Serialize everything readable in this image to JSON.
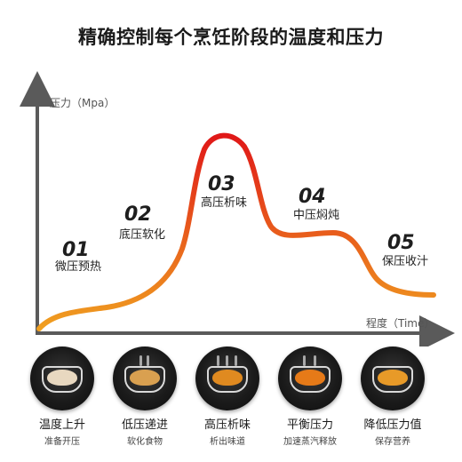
{
  "title": "精确控制每个烹饪阶段的温度和压力",
  "chart_data": {
    "type": "line",
    "ylabel": "压力（Mpa）",
    "xlabel": "程度（Time）",
    "curve_colors": [
      "#f0a020",
      "#e01818"
    ],
    "axis_color": "#5a5a5a",
    "stages": [
      {
        "num": "01",
        "label": "微压预热"
      },
      {
        "num": "02",
        "label": "底压软化"
      },
      {
        "num": "03",
        "label": "高压析味"
      },
      {
        "num": "04",
        "label": "中压焖炖"
      },
      {
        "num": "05",
        "label": "保压收汁"
      }
    ]
  },
  "steps": [
    {
      "title": "温度上升",
      "sub": "准备开压",
      "food_color": "#e8d8c0"
    },
    {
      "title": "低压递进",
      "sub": "软化食物",
      "food_color": "#d9a050"
    },
    {
      "title": "高压析味",
      "sub": "析出味道",
      "food_color": "#e08a20"
    },
    {
      "title": "平衡压力",
      "sub": "加速蒸汽释放",
      "food_color": "#e67a18"
    },
    {
      "title": "降低压力值",
      "sub": "保存营养",
      "food_color": "#e89a28"
    }
  ]
}
